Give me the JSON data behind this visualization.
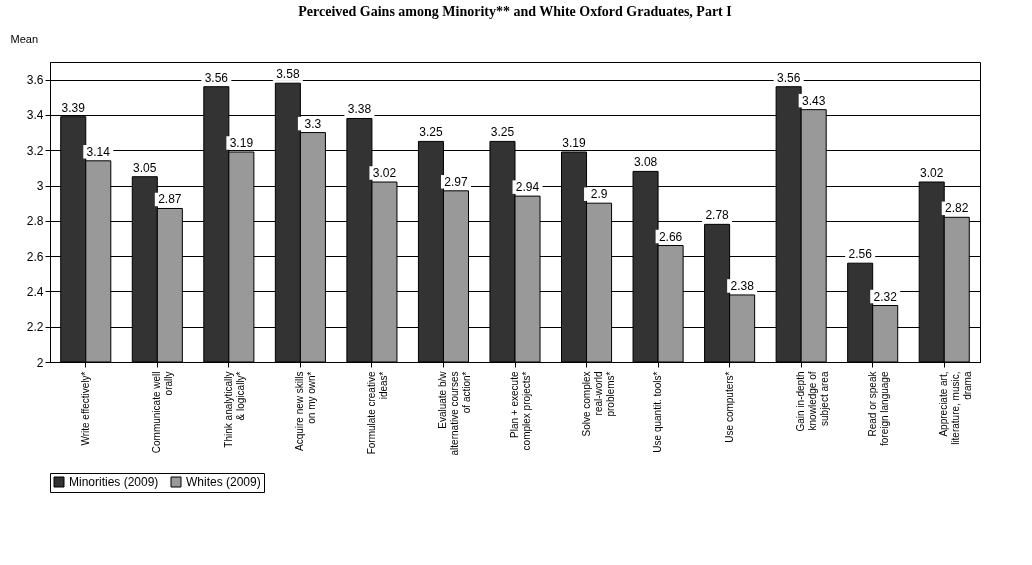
{
  "chart_data": {
    "type": "bar",
    "title": "Perceived Gains among Minority** and White Oxford Graduates, Part I",
    "ylabel": "Mean",
    "categories": [
      "Write effectively*",
      "Communicate well orally",
      "Think analytically & logically*",
      "Acquire new skills on my own*",
      "Formulate creative ideas*",
      "Evaluate b/w alternative courses of action*",
      "Plan + execute complex projects*",
      "Solve complex real-world problems*",
      "Use quantit. tools*",
      "Use computers*",
      "Gain in-depth knowledge of subject area",
      "Read or speak foreign language",
      "Appreciate art, literature, music, drama"
    ],
    "series": [
      {
        "name": "Minorities (2009)",
        "color": "#333333",
        "values": [
          3.39,
          3.05,
          3.56,
          3.58,
          3.38,
          3.25,
          3.25,
          3.19,
          3.08,
          2.78,
          3.56,
          2.56,
          3.02
        ]
      },
      {
        "name": "Whites (2009)",
        "color": "#999999",
        "values": [
          3.14,
          2.87,
          3.19,
          3.3,
          3.02,
          2.97,
          2.94,
          2.9,
          2.66,
          2.38,
          3.43,
          2.32,
          2.82
        ]
      }
    ],
    "ylim": [
      2,
      3.7
    ],
    "yticks": [
      2,
      2.2,
      2.4,
      2.6,
      2.8,
      3,
      3.2,
      3.4,
      3.6
    ],
    "grid": "y",
    "legend": "bottom",
    "data_labels": true
  }
}
